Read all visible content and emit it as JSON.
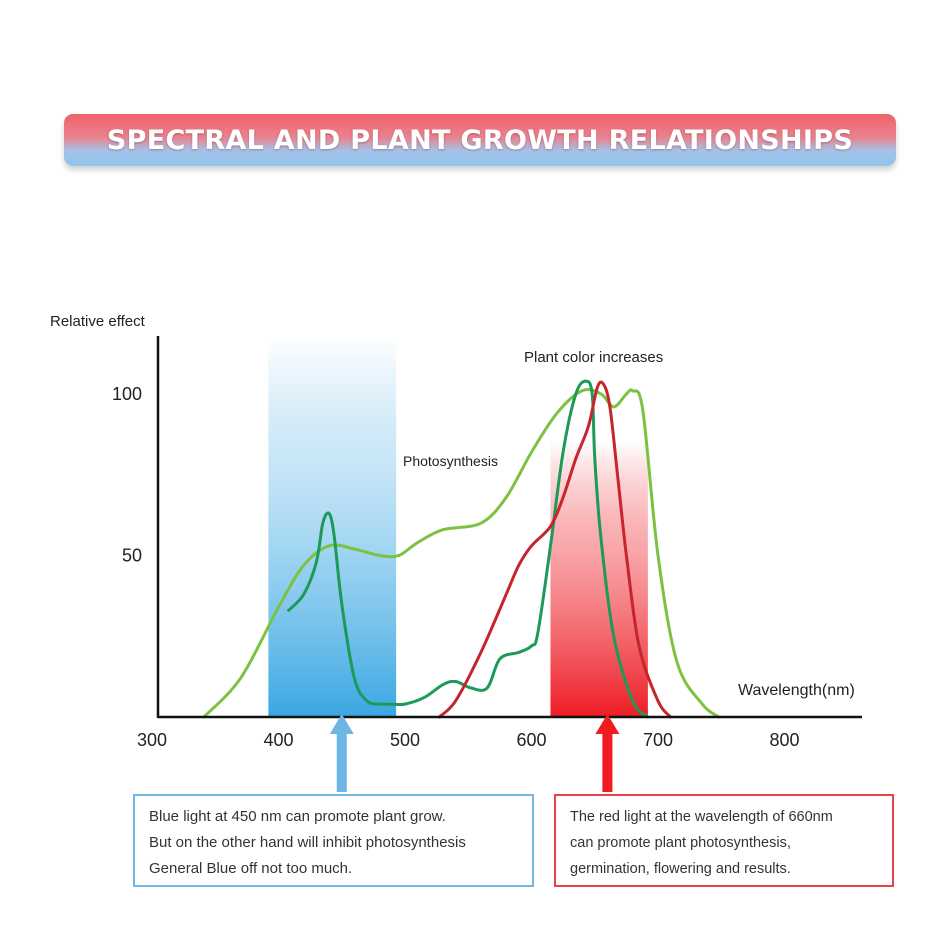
{
  "title": "SPECTRAL AND PLANT GROWTH RELATIONSHIPS",
  "chart_data": {
    "type": "line",
    "xlabel": "Wavelength(nm)",
    "ylabel": "Relative effect",
    "x_ticks": [
      "300",
      "400",
      "500",
      "600",
      "700",
      "800"
    ],
    "y_ticks": [
      "100",
      "50"
    ],
    "xlim": [
      300,
      850
    ],
    "ylim": [
      0,
      120
    ],
    "annotations": [
      "Photosynthesis",
      "Plant color increases"
    ],
    "bands": [
      {
        "from": 392,
        "to": 493,
        "color": "#4aaee4"
      },
      {
        "from": 615,
        "to": 692,
        "color": "#f0282f"
      }
    ],
    "series": [
      {
        "color": "#7cc242",
        "points": [
          [
            341,
            0
          ],
          [
            370,
            12
          ],
          [
            400,
            34
          ],
          [
            420,
            47
          ],
          [
            440,
            53
          ],
          [
            460,
            52
          ],
          [
            480,
            50
          ],
          [
            495,
            50
          ],
          [
            510,
            54
          ],
          [
            530,
            58
          ],
          [
            560,
            60
          ],
          [
            580,
            68
          ],
          [
            600,
            82
          ],
          [
            620,
            94
          ],
          [
            640,
            101
          ],
          [
            655,
            100
          ],
          [
            665,
            96
          ],
          [
            675,
            100
          ],
          [
            680,
            101
          ],
          [
            688,
            95
          ],
          [
            700,
            50
          ],
          [
            715,
            17
          ],
          [
            735,
            4
          ],
          [
            748,
            0
          ]
        ]
      },
      {
        "color": "#1c9a58",
        "points": [
          [
            408,
            33
          ],
          [
            420,
            38
          ],
          [
            430,
            48
          ],
          [
            435,
            60
          ],
          [
            440,
            63
          ],
          [
            444,
            56
          ],
          [
            450,
            35
          ],
          [
            460,
            12
          ],
          [
            470,
            5
          ],
          [
            480,
            4
          ],
          [
            490,
            4
          ],
          [
            500,
            4
          ],
          [
            515,
            6
          ],
          [
            530,
            10
          ],
          [
            540,
            11
          ],
          [
            552,
            9
          ],
          [
            565,
            9
          ],
          [
            575,
            18
          ],
          [
            590,
            20
          ],
          [
            600,
            22
          ],
          [
            605,
            26
          ],
          [
            615,
            53
          ],
          [
            625,
            82
          ],
          [
            635,
            100
          ],
          [
            643,
            104
          ],
          [
            648,
            100
          ],
          [
            650,
            80
          ],
          [
            655,
            55
          ],
          [
            665,
            25
          ],
          [
            680,
            5
          ],
          [
            692,
            0
          ]
        ]
      },
      {
        "color": "#c5252d",
        "points": [
          [
            527,
            0
          ],
          [
            540,
            5
          ],
          [
            560,
            20
          ],
          [
            580,
            38
          ],
          [
            590,
            47
          ],
          [
            600,
            53
          ],
          [
            615,
            59
          ],
          [
            625,
            68
          ],
          [
            635,
            80
          ],
          [
            645,
            90
          ],
          [
            652,
            102
          ],
          [
            657,
            103
          ],
          [
            662,
            96
          ],
          [
            668,
            75
          ],
          [
            675,
            50
          ],
          [
            685,
            22
          ],
          [
            700,
            5
          ],
          [
            710,
            0
          ]
        ]
      }
    ],
    "arrows": [
      {
        "x": 450,
        "color": "#6cb6e6"
      },
      {
        "x": 660,
        "color": "#f21b22"
      }
    ]
  },
  "notes": {
    "blue": [
      "Blue light at 450 nm can promote plant grow.",
      "But on the other hand will inhibit photosynthesis",
      "General Blue off not too much."
    ],
    "red": [
      "The red light at the wavelength of 660nm",
      "can promote plant photosynthesis,",
      "germination, flowering and results."
    ]
  }
}
